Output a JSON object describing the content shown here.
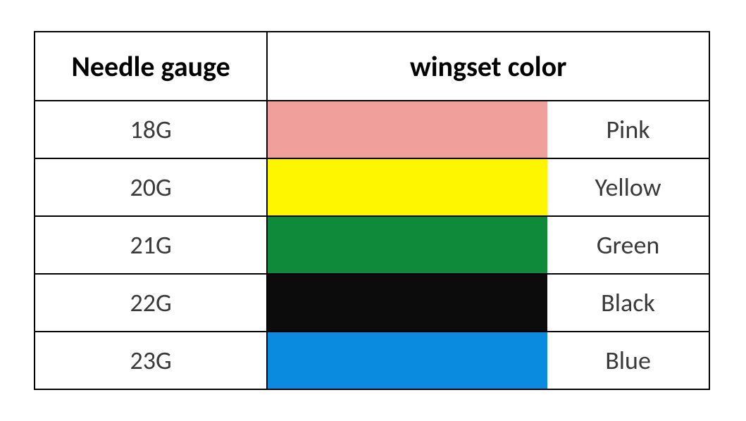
{
  "table": {
    "header": {
      "gauge": "Needle gauge",
      "color": "wingset color"
    },
    "header_fontsize": 40,
    "cell_fontsize": 36,
    "border_color": "#000000",
    "background_color": "#ffffff",
    "text_color": "#3a3a3a",
    "columns": {
      "gauge_width": 330,
      "swatch_width": 400,
      "name_width": 230
    },
    "rows": [
      {
        "gauge": "18G",
        "swatch": "#f19f9a",
        "name": "Pink"
      },
      {
        "gauge": "20G",
        "swatch": "#fef500",
        "name": "Yellow"
      },
      {
        "gauge": "21G",
        "swatch": "#0f8a3b",
        "name": "Green"
      },
      {
        "gauge": "22G",
        "swatch": "#0c0c0c",
        "name": "Black"
      },
      {
        "gauge": "23G",
        "swatch": "#0a8be0",
        "name": "Blue"
      }
    ]
  }
}
